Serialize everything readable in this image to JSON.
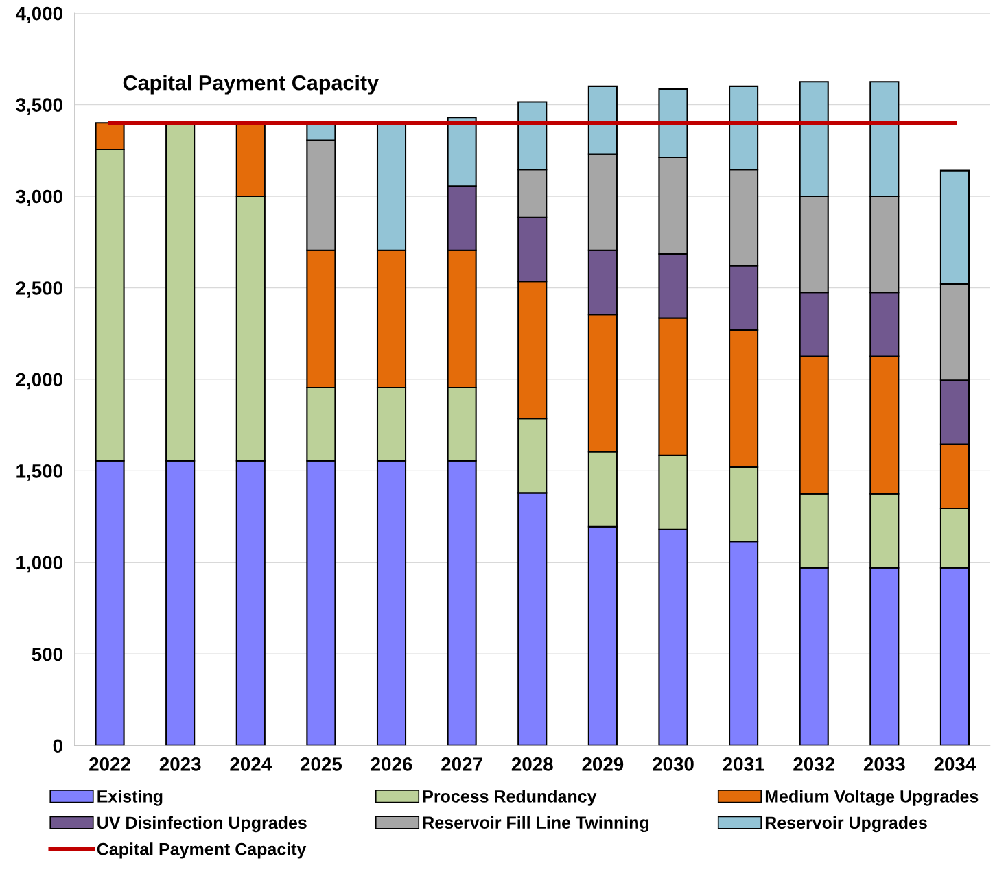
{
  "chart_data": {
    "type": "bar",
    "stacked": true,
    "categories": [
      "2022",
      "2023",
      "2024",
      "2025",
      "2026",
      "2027",
      "2028",
      "2029",
      "2030",
      "2031",
      "2032",
      "2033",
      "2034"
    ],
    "series": [
      {
        "name": "Existing",
        "color": "#8080ff",
        "values": [
          1555,
          1555,
          1555,
          1555,
          1555,
          1555,
          1380,
          1195,
          1180,
          1115,
          970,
          970,
          970
        ]
      },
      {
        "name": "Process Redundancy",
        "color": "#bcd199",
        "values": [
          1700,
          1845,
          1445,
          400,
          400,
          400,
          405,
          410,
          405,
          405,
          405,
          405,
          325
        ]
      },
      {
        "name": "Medium Voltage Upgrades",
        "color": "#e46c0a",
        "values": [
          145,
          null,
          400,
          750,
          750,
          750,
          750,
          750,
          750,
          750,
          750,
          750,
          350
        ]
      },
      {
        "name": "UV Disinfection Upgrades",
        "color": "#71588f",
        "values": [
          null,
          null,
          null,
          null,
          null,
          350,
          350,
          350,
          350,
          350,
          350,
          350,
          350
        ]
      },
      {
        "name": "Reservoir Fill Line Twinning",
        "color": "#a6a6a6",
        "values": [
          null,
          null,
          null,
          600,
          null,
          null,
          260,
          525,
          525,
          525,
          525,
          525,
          525
        ]
      },
      {
        "name": "Reservoir Upgrades",
        "color": "#93c4d6",
        "values": [
          null,
          null,
          null,
          95,
          695,
          375,
          370,
          370,
          375,
          455,
          625,
          625,
          620
        ]
      },
      {
        "name": "Capital Payment Capacity",
        "type": "line",
        "color": "#c00000",
        "values": [
          3400,
          3400,
          3400,
          3400,
          3400,
          3400,
          3400,
          3400,
          3400,
          3400,
          3400,
          3400,
          3400
        ]
      }
    ],
    "annotations": [
      {
        "text": "Capital Payment Capacity",
        "x": "2024",
        "y": 3400
      }
    ],
    "ylim": [
      0,
      4000
    ],
    "yticks": [
      {
        "value": 0,
        "label": "0"
      },
      {
        "value": 500,
        "label": "500"
      },
      {
        "value": 1000,
        "label": "1,000"
      },
      {
        "value": 1500,
        "label": "1,500"
      },
      {
        "value": 2000,
        "label": "2,000"
      },
      {
        "value": 2500,
        "label": "2,500"
      },
      {
        "value": 3000,
        "label": "3,000"
      },
      {
        "value": 3500,
        "label": "3,500"
      },
      {
        "value": 4000,
        "label": "4,000"
      }
    ],
    "grid": "y",
    "legend": "bottom"
  }
}
